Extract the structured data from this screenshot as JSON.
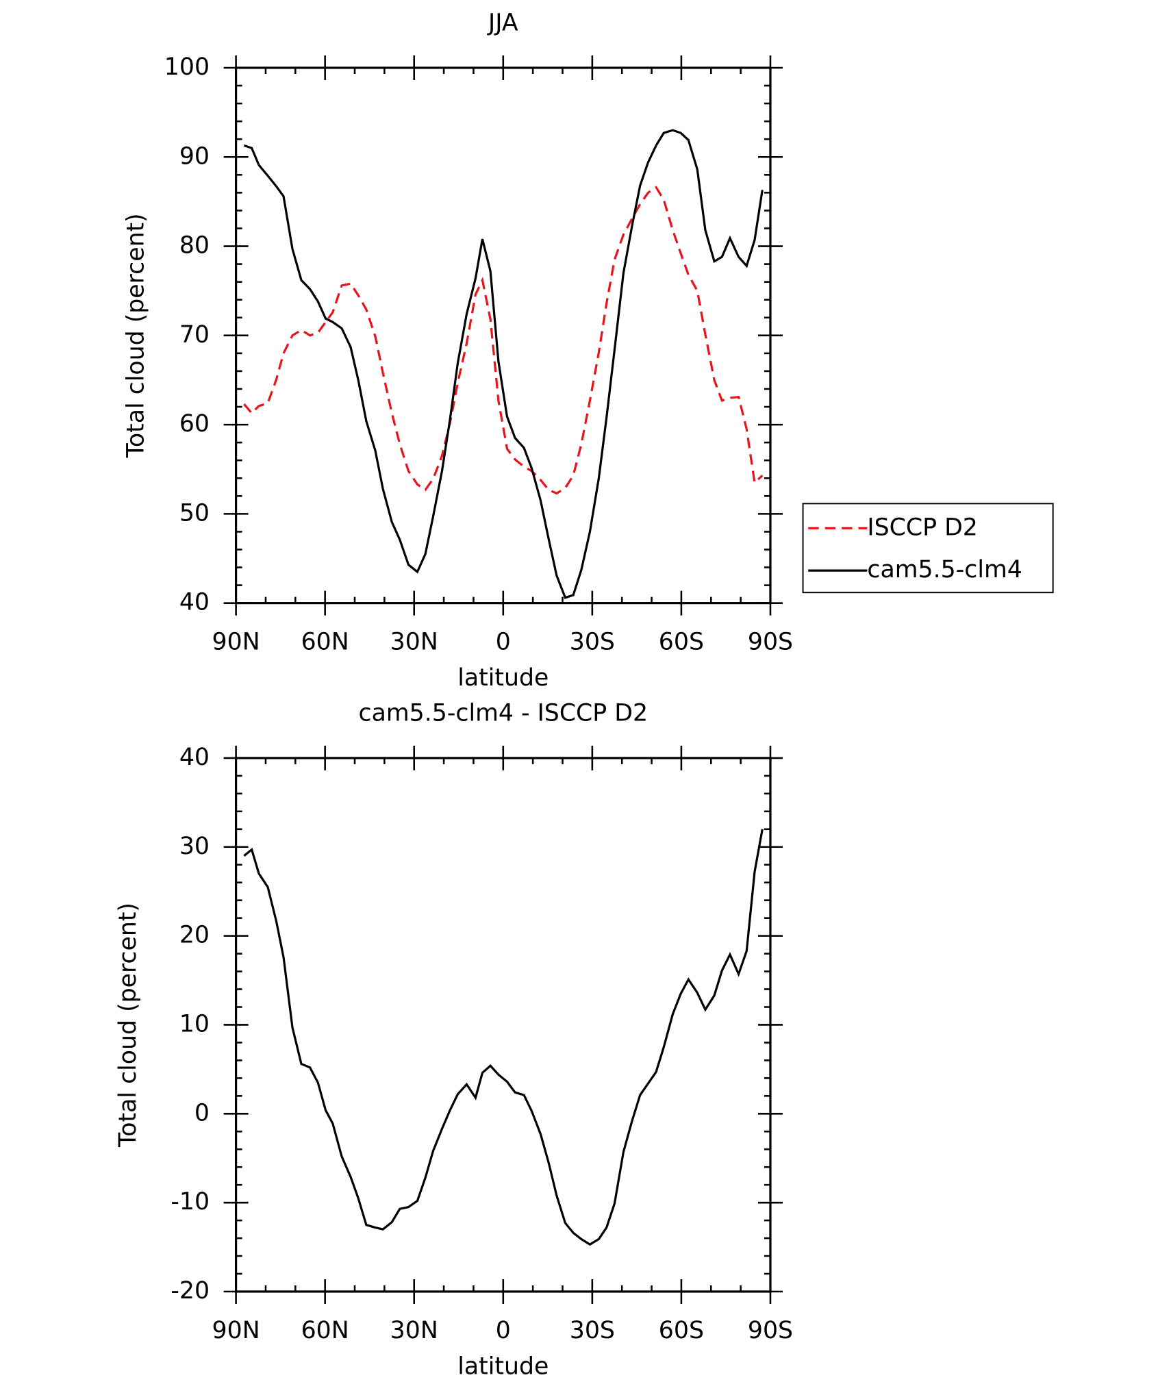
{
  "chart_data": [
    {
      "type": "line",
      "title": "JJA",
      "x_label": "latitude",
      "y_label": "Total cloud (percent)",
      "xlim": [
        90,
        -90
      ],
      "xticks": [
        {
          "value": 90,
          "label": "90N"
        },
        {
          "value": 60,
          "label": "60N"
        },
        {
          "value": 30,
          "label": "30N"
        },
        0,
        {
          "value": -30,
          "label": "30S"
        },
        {
          "value": -60,
          "label": "60S"
        },
        {
          "value": -90,
          "label": "90S"
        }
      ],
      "ylim": [
        40,
        100
      ],
      "yticks": [
        40,
        50,
        60,
        70,
        80,
        90,
        100
      ],
      "legend": "right",
      "x": [
        87.3,
        84.7,
        82.3,
        79.3,
        76.4,
        74,
        71,
        68,
        65.1,
        62.4,
        59.8,
        57.4,
        54.4,
        51.4,
        48.8,
        46.1,
        43.1,
        40.5,
        37.5,
        34.8,
        31.9,
        28.9,
        26.2,
        23.6,
        20.6,
        17.9,
        15.3,
        12.3,
        9.3,
        7,
        4.3,
        1.6,
        -1.3,
        -4,
        -7,
        -9.6,
        -12.6,
        -15.3,
        -18,
        -20.9,
        -23.6,
        -26.3,
        -29.2,
        -32.2,
        -34.8,
        -37.5,
        -40.5,
        -43.4,
        -46.1,
        -48.8,
        -51.5,
        -54.1,
        -57.1,
        -59.8,
        -62.4,
        -65.4,
        -68.1,
        -71.1,
        -73.7,
        -76.4,
        -79.3,
        -82,
        -84.7,
        -87.3
      ],
      "series": [
        {
          "name": "ISCCP D2",
          "color": "#e8141c",
          "dashed": true,
          "values": [
            62.3,
            61.3,
            62.1,
            62.4,
            65.1,
            68,
            70,
            70.6,
            70,
            70.3,
            71.5,
            72.6,
            75.6,
            75.8,
            74.5,
            72.9,
            69.9,
            65.8,
            61.3,
            57.8,
            54.8,
            53.3,
            52.7,
            53.9,
            56.5,
            60.2,
            64.7,
            69.1,
            74.6,
            76.2,
            71.8,
            62.7,
            57.3,
            56.1,
            55.3,
            54.8,
            53.8,
            52.7,
            52.3,
            52.9,
            54.3,
            57.8,
            62.7,
            68.1,
            73.6,
            78.5,
            81.3,
            83.1,
            84.7,
            86,
            86.6,
            85.2,
            81.8,
            79.2,
            76.8,
            75,
            70.1,
            65,
            62.7,
            63,
            63.1,
            59.5,
            53.5,
            54.3
          ]
        },
        {
          "name": "cam5.5-clm4",
          "color": "#000000",
          "dashed": false,
          "values": [
            91.3,
            91,
            89.1,
            87.9,
            86.7,
            85.6,
            79.7,
            76.2,
            75.2,
            73.8,
            71.9,
            71.5,
            70.8,
            68.7,
            65,
            60.4,
            57.1,
            52.8,
            49.1,
            47.1,
            44.3,
            43.5,
            45.5,
            49.7,
            54.8,
            60.6,
            66.9,
            72.4,
            76.4,
            80.8,
            77.2,
            67.1,
            60.9,
            58.5,
            57.4,
            55.1,
            51.5,
            47.2,
            43.1,
            40.6,
            40.9,
            43.7,
            48,
            54,
            60.8,
            68.4,
            77,
            82.3,
            86.8,
            89.4,
            91.3,
            92.7,
            93,
            92.7,
            91.9,
            88.6,
            81.8,
            78.3,
            78.8,
            80.9,
            78.8,
            77.8,
            80.7,
            86.3
          ]
        }
      ]
    },
    {
      "type": "line",
      "title": "cam5.5-clm4 - ISCCP D2",
      "x_label": "latitude",
      "y_label": "Total cloud (percent)",
      "xlim": [
        90,
        -90
      ],
      "xticks": [
        {
          "value": 90,
          "label": "90N"
        },
        {
          "value": 60,
          "label": "60N"
        },
        {
          "value": 30,
          "label": "30N"
        },
        0,
        {
          "value": -30,
          "label": "30S"
        },
        {
          "value": -60,
          "label": "60S"
        },
        {
          "value": -90,
          "label": "90S"
        }
      ],
      "ylim": [
        -20,
        40
      ],
      "yticks": [
        -20,
        -10,
        0,
        10,
        20,
        30,
        40
      ],
      "x": [
        87.3,
        84.7,
        82.3,
        79.3,
        76.4,
        74,
        71,
        68,
        65.1,
        62.4,
        59.8,
        57.4,
        54.4,
        51.4,
        48.8,
        46.1,
        43.1,
        40.5,
        37.5,
        34.8,
        31.9,
        28.9,
        26.2,
        23.6,
        20.6,
        17.9,
        15.3,
        12.3,
        9.3,
        7,
        4.3,
        1.6,
        -1.3,
        -4,
        -7,
        -9.6,
        -12.6,
        -15.3,
        -18,
        -20.9,
        -23.6,
        -26.3,
        -29.2,
        -32.2,
        -34.8,
        -37.5,
        -40.5,
        -43.4,
        -46.1,
        -48.8,
        -51.5,
        -54.1,
        -57.1,
        -59.8,
        -62.4,
        -65.4,
        -68.1,
        -71.1,
        -73.7,
        -76.4,
        -79.3,
        -82,
        -84.7,
        -87.3
      ],
      "series": [
        {
          "color": "#000000",
          "dashed": false,
          "values": [
            29,
            29.7,
            27,
            25.5,
            21.6,
            17.6,
            9.7,
            5.6,
            5.2,
            3.5,
            0.4,
            -1.1,
            -4.8,
            -7.1,
            -9.5,
            -12.5,
            -12.8,
            -13,
            -12.2,
            -10.7,
            -10.5,
            -9.8,
            -7.2,
            -4.2,
            -1.7,
            0.4,
            2.2,
            3.3,
            1.8,
            4.6,
            5.4,
            4.4,
            3.6,
            2.4,
            2.1,
            0.3,
            -2.3,
            -5.5,
            -9.2,
            -12.3,
            -13.4,
            -14.1,
            -14.7,
            -14.1,
            -12.8,
            -10.1,
            -4.3,
            -0.8,
            2.1,
            3.4,
            4.7,
            7.5,
            11.2,
            13.5,
            15.1,
            13.6,
            11.7,
            13.3,
            16.1,
            17.9,
            15.7,
            18.3,
            27.2,
            32
          ]
        }
      ]
    }
  ]
}
